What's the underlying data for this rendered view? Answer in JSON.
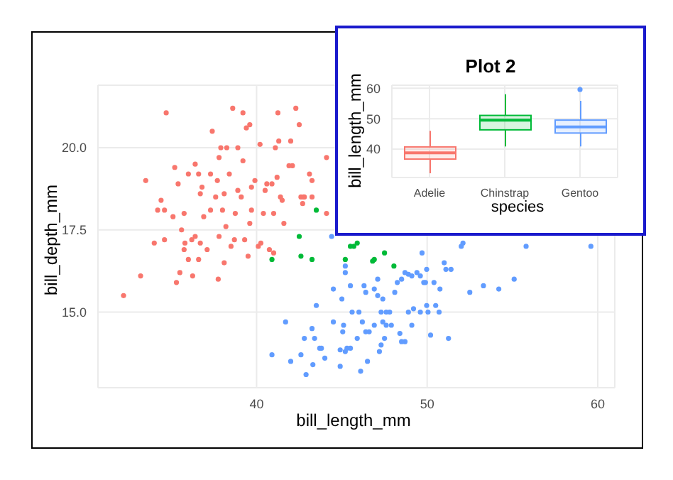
{
  "chart_data": [
    {
      "type": "scatter",
      "xlabel": "bill_length_mm",
      "ylabel": "bill_depth_mm",
      "xlim": [
        30.7,
        61
      ],
      "xticks": [
        40,
        50,
        60
      ],
      "ylim": [
        12.7,
        21.9
      ],
      "yticks": [
        {
          "value": 15,
          "label": "15.0"
        },
        17.5,
        {
          "value": 20,
          "label": "20.0"
        }
      ],
      "grid": true,
      "legend": false,
      "marker": "circle",
      "series": [
        {
          "color": "#f8766d",
          "x": [
            34.7,
            32.2,
            33.2,
            33.5,
            34.2,
            34.6,
            34.4,
            34.0,
            34.6,
            35.1,
            35.2,
            35.4,
            35.3,
            35.5,
            35.6,
            35.75,
            36.0,
            36.4,
            36.6,
            35.75,
            35.8,
            36.0,
            36.25,
            36.2,
            36.4,
            36.6,
            36.7,
            36.7,
            36.8,
            36.9,
            37.1,
            37.3,
            37.3,
            37.4,
            37.6,
            37.7,
            37.75,
            37.8,
            37.8,
            37.9,
            38.0,
            38.1,
            38.1,
            38.2,
            38.25,
            38.4,
            38.5,
            38.6,
            38.7,
            38.75,
            38.9,
            38.9,
            39.1,
            39.2,
            39.2,
            39.3,
            39.4,
            39.5,
            39.6,
            39.6,
            39.7,
            39.7,
            39.9,
            40.1,
            40.2,
            40.25,
            40.4,
            40.5,
            40.6,
            40.75,
            40.9,
            41.0,
            41.0,
            41.1,
            41.2,
            41.25,
            41.3,
            41.4,
            41.5,
            41.6,
            41.9,
            42.0,
            42.1,
            42.3,
            42.5,
            42.6,
            42.7,
            42.75,
            42.8,
            43.1,
            43.25,
            43.25,
            44.1,
            44.1
          ],
          "values": [
            21.06,
            15.5,
            16.1,
            19.0,
            18.1,
            18.1,
            18.4,
            17.1,
            17.2,
            17.9,
            19.4,
            18.9,
            15.9,
            16.2,
            17.5,
            18.0,
            19.2,
            19.5,
            19.2,
            16.9,
            17.1,
            16.6,
            16.1,
            17.2,
            17.3,
            16.6,
            17.1,
            18.6,
            18.8,
            17.9,
            16.9,
            19.2,
            18.1,
            20.5,
            18.5,
            19.0,
            16.0,
            17.3,
            19.7,
            20.0,
            18.1,
            18.6,
            16.5,
            17.6,
            20.0,
            19.2,
            17.0,
            21.2,
            17.2,
            18.0,
            20.0,
            18.7,
            18.5,
            21.06,
            19.6,
            17.2,
            20.6,
            16.7,
            20.7,
            17.7,
            18.1,
            18.8,
            19.0,
            17.0,
            20.1,
            17.1,
            18.0,
            18.7,
            18.9,
            16.9,
            18.9,
            16.8,
            18.0,
            20.0,
            19.1,
            21.06,
            20.2,
            18.5,
            18.4,
            17.7,
            19.45,
            20.2,
            19.45,
            21.2,
            20.7,
            18.5,
            18.3,
            18.5,
            18.5,
            19.2,
            19.0,
            18.5,
            19.7,
            18.0
          ]
        },
        {
          "color": "#00ba38",
          "x": [
            43.5,
            42.5,
            42.6,
            40.9,
            43.25,
            45.5,
            45.7,
            45.9,
            45.2,
            46.8,
            46.9,
            47.5,
            48.05
          ],
          "values": [
            18.1,
            17.3,
            16.7,
            16.6,
            16.6,
            17.0,
            17.0,
            17.1,
            16.6,
            16.55,
            16.6,
            16.8,
            16.4
          ]
        },
        {
          "color": "#619cff",
          "x": [
            44.4,
            52.1,
            52.0,
            55.8,
            59.6,
            45.2,
            45.2,
            44.5,
            45.0,
            45.5,
            46.3,
            46.4,
            47.1,
            47.4,
            46.9,
            48.1,
            48.25,
            48.5,
            48.7,
            48.9,
            49.1,
            49.4,
            49.6,
            49.8,
            49.9,
            49.97,
            49.7,
            50.4,
            50.75,
            51.0,
            51.1,
            51.4,
            52.5,
            53.3,
            54.2,
            55.1,
            43.5,
            41.7,
            43.25,
            42.8,
            43.4,
            43.7,
            43.8,
            42.6,
            40.9,
            42.0,
            43.3,
            44.0,
            42.9,
            44.5,
            45.1,
            45.05,
            45.6,
            46.0,
            46.2,
            46.6,
            46.4,
            45.9,
            45.3,
            44.9,
            45.2,
            45.5,
            44.9,
            46.1,
            46.5,
            47.2,
            47.3,
            47.5,
            46.9,
            47.3,
            47.6,
            47.8,
            47.6,
            47.9,
            47.4,
            48.4,
            48.7,
            48.5,
            49.1,
            48.9,
            49.2,
            49.6,
            49.97,
            50.05,
            50.5,
            50.7,
            50.2,
            51.25,
            47.1
          ],
          "values": [
            17.3,
            17.1,
            17.0,
            17.0,
            17.0,
            16.4,
            16.2,
            15.7,
            15.4,
            15.8,
            15.8,
            15.6,
            15.5,
            15.4,
            15.7,
            15.6,
            15.9,
            16.0,
            16.2,
            16.15,
            16.1,
            16.2,
            16.1,
            15.9,
            15.9,
            16.3,
            16.8,
            15.9,
            15.7,
            16.5,
            16.3,
            16.3,
            15.6,
            15.8,
            15.7,
            16.0,
            15.2,
            14.7,
            14.5,
            14.2,
            14.2,
            13.9,
            13.9,
            13.7,
            13.7,
            13.5,
            13.4,
            13.6,
            13.1,
            14.7,
            14.6,
            14.4,
            15.0,
            15.0,
            14.7,
            14.4,
            14.4,
            14.2,
            13.9,
            13.85,
            13.8,
            13.9,
            13.35,
            13.2,
            13.5,
            13.8,
            14.0,
            14.2,
            14.6,
            15.0,
            15.0,
            15.0,
            14.6,
            14.6,
            14.7,
            14.35,
            14.1,
            14.1,
            14.6,
            15.0,
            15.1,
            15.0,
            15.2,
            15.0,
            15.2,
            15.0,
            14.3,
            14.2,
            16.0
          ]
        }
      ]
    },
    {
      "type": "box",
      "title": "Plot 2",
      "xlabel": "species",
      "ylabel": "bill_length_mm",
      "categories": [
        "Adelie",
        "Chinstrap",
        "Gentoo"
      ],
      "colors": [
        "#f8766d",
        "#00ba38",
        "#619cff"
      ],
      "ylim": [
        30.7,
        61
      ],
      "yticks": [
        40,
        50,
        60
      ],
      "grid": true,
      "legend": false,
      "boxes": [
        {
          "low": 32.1,
          "q1": 36.75,
          "median": 38.8,
          "q3": 40.75,
          "high": 46.0
        },
        {
          "low": 40.9,
          "q1": 46.35,
          "median": 49.55,
          "q3": 51.08,
          "high": 58.0
        },
        {
          "low": 40.9,
          "q1": 45.3,
          "median": 47.3,
          "q3": 49.55,
          "high": 55.9,
          "outliers": [
            59.6
          ]
        }
      ]
    }
  ]
}
